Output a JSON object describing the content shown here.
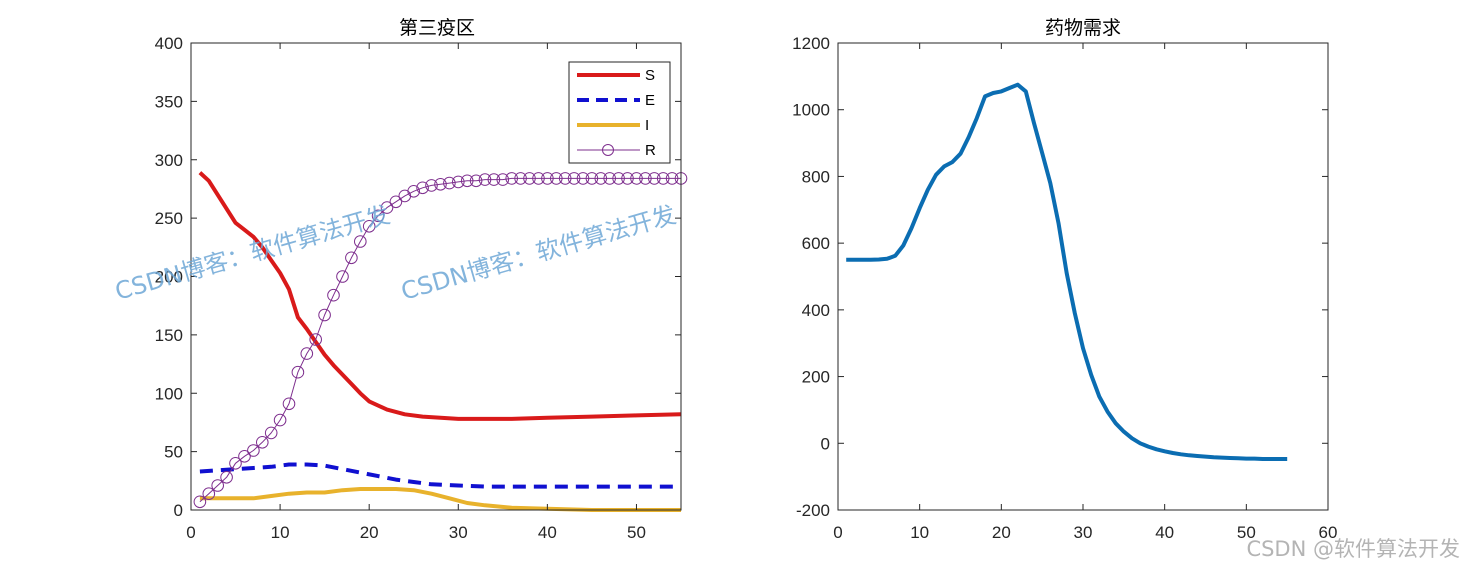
{
  "chart_data": [
    {
      "type": "line",
      "title": "第三疫区",
      "xlim": [
        0,
        55
      ],
      "ylim": [
        0,
        400
      ],
      "xticks": [
        0,
        10,
        20,
        30,
        40,
        50
      ],
      "yticks": [
        0,
        50,
        100,
        150,
        200,
        250,
        300,
        350,
        400
      ],
      "legend_position": "top-right",
      "series": [
        {
          "name": "S",
          "style": "solid",
          "marker": "none",
          "color": "#d91a1a",
          "x": [
            1,
            2,
            3,
            4,
            5,
            6,
            7,
            8,
            9,
            10,
            11,
            12,
            13,
            14,
            15,
            16,
            17,
            18,
            19,
            20,
            22,
            24,
            26,
            28,
            30,
            33,
            36,
            40,
            45,
            50,
            55
          ],
          "y": [
            289,
            282,
            270,
            258,
            246,
            240,
            234,
            225,
            214,
            203,
            189,
            165,
            155,
            144,
            133,
            124,
            116,
            108,
            100,
            93,
            86,
            82,
            80,
            79,
            78,
            78,
            78,
            79,
            80,
            81,
            82
          ]
        },
        {
          "name": "E",
          "style": "dashed",
          "marker": "none",
          "color": "#1010d0",
          "x": [
            1,
            3,
            5,
            7,
            9,
            11,
            13,
            15,
            17,
            19,
            21,
            23,
            25,
            27,
            30,
            33,
            36,
            40,
            45,
            50,
            55
          ],
          "y": [
            33,
            34,
            35,
            36,
            37,
            39,
            39,
            38,
            35,
            32,
            29,
            26,
            24,
            22,
            21,
            20,
            20,
            20,
            20,
            20,
            20
          ]
        },
        {
          "name": "I",
          "style": "solid",
          "marker": "none",
          "color": "#e8b22c",
          "x": [
            1,
            3,
            5,
            7,
            9,
            11,
            13,
            15,
            17,
            19,
            21,
            23,
            25,
            27,
            29,
            31,
            33,
            36,
            40,
            45,
            50,
            55
          ],
          "y": [
            10,
            10,
            10,
            10,
            12,
            14,
            15,
            15,
            17,
            18,
            18,
            18,
            17,
            14,
            10,
            6,
            4,
            2,
            1,
            0,
            0,
            0
          ]
        },
        {
          "name": "R",
          "style": "solid",
          "marker": "circle",
          "color": "#7e2f8e",
          "x": [
            1,
            2,
            3,
            4,
            5,
            6,
            7,
            8,
            9,
            10,
            11,
            12,
            13,
            14,
            15,
            16,
            17,
            18,
            19,
            20,
            21,
            22,
            23,
            24,
            25,
            26,
            27,
            28,
            29,
            30,
            31,
            32,
            33,
            34,
            35,
            36,
            37,
            38,
            39,
            40,
            41,
            42,
            43,
            44,
            45,
            46,
            47,
            48,
            49,
            50,
            51,
            52,
            53,
            54,
            55
          ],
          "y": [
            7,
            14,
            21,
            28,
            40,
            46,
            51,
            58,
            66,
            77,
            91,
            118,
            134,
            146,
            167,
            184,
            200,
            216,
            230,
            243,
            252,
            259,
            264,
            269,
            273,
            276,
            278,
            279,
            280,
            281,
            282,
            282,
            283,
            283,
            283,
            284,
            284,
            284,
            284,
            284,
            284,
            284,
            284,
            284,
            284,
            284,
            284,
            284,
            284,
            284,
            284,
            284,
            284,
            284,
            284
          ]
        }
      ]
    },
    {
      "type": "line",
      "title": "药物需求",
      "xlim": [
        0,
        60
      ],
      "ylim": [
        -200,
        1200
      ],
      "xticks": [
        0,
        10,
        20,
        30,
        40,
        50,
        60
      ],
      "yticks": [
        -200,
        0,
        200,
        400,
        600,
        800,
        1000,
        1200
      ],
      "series": [
        {
          "style": "solid",
          "marker": "none",
          "color": "#0b6db2",
          "x": [
            1,
            2,
            3,
            4,
            5,
            6,
            7,
            8,
            9,
            10,
            11,
            12,
            13,
            14,
            15,
            16,
            17,
            18,
            19,
            20,
            21,
            22,
            23,
            24,
            25,
            26,
            27,
            28,
            29,
            30,
            31,
            32,
            33,
            34,
            35,
            36,
            37,
            38,
            39,
            40,
            41,
            42,
            43,
            44,
            45,
            46,
            47,
            48,
            49,
            50,
            51,
            52,
            53,
            54,
            55
          ],
          "y": [
            550,
            550,
            550,
            550,
            551,
            553,
            562,
            593,
            645,
            705,
            760,
            805,
            830,
            843,
            868,
            918,
            975,
            1040,
            1050,
            1055,
            1065,
            1075,
            1055,
            960,
            870,
            780,
            660,
            510,
            390,
            285,
            205,
            140,
            95,
            60,
            35,
            15,
            0,
            -10,
            -18,
            -24,
            -29,
            -33,
            -36,
            -38,
            -40,
            -42,
            -43,
            -44,
            -45,
            -46,
            -46,
            -47,
            -47,
            -47,
            -47
          ]
        }
      ]
    }
  ],
  "watermarks": [
    "CSDN博客：软件算法开发",
    "CSDN博客：软件算法开发"
  ],
  "credit": "CSDN @软件算法开发"
}
